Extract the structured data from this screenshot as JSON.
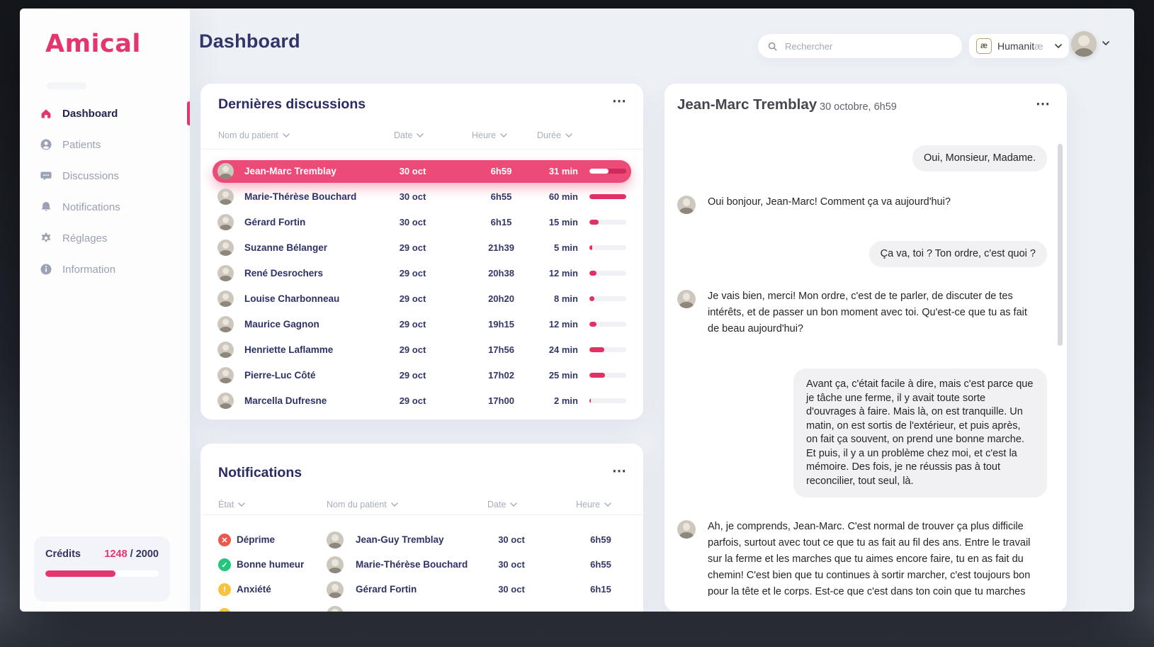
{
  "app": {
    "logo": "Amical",
    "page_title": "Dashboard"
  },
  "topbar": {
    "search": {
      "placeholder": "Rechercher"
    },
    "lang": {
      "box_glyph": "æ",
      "label": "Humanit",
      "suffix": "æ"
    }
  },
  "icons": {
    "menu_glyph": "⋯"
  },
  "sidebar": {
    "items": [
      {
        "label": "Dashboard",
        "icon": "home-icon",
        "active": true
      },
      {
        "label": "Patients",
        "icon": "person-icon",
        "active": false
      },
      {
        "label": "Discussions",
        "icon": "chat-bubble-icon",
        "active": false
      },
      {
        "label": "Notifications",
        "icon": "bell-icon",
        "active": false
      },
      {
        "label": "Réglages",
        "icon": "gear-icon",
        "active": false
      },
      {
        "label": "Information",
        "icon": "info-icon",
        "active": false
      }
    ],
    "credits": {
      "label": "Crédits",
      "used": "1248",
      "separator": " / ",
      "total": "2000",
      "percent": 62
    }
  },
  "discussions": {
    "title": "Dernières discussions",
    "columns": [
      "Nom du patient",
      "Date",
      "Heure",
      "Durée"
    ],
    "rows": [
      {
        "name": "Jean-Marc Tremblay",
        "date": "30 oct",
        "time": "6h59",
        "duration": "31 min",
        "percent": 52,
        "selected": true
      },
      {
        "name": "Marie-Thérèse Bouchard",
        "date": "30 oct",
        "time": "6h55",
        "duration": "60 min",
        "percent": 100,
        "selected": false
      },
      {
        "name": "Gérard Fortin",
        "date": "30 oct",
        "time": "6h15",
        "duration": "15 min",
        "percent": 25,
        "selected": false
      },
      {
        "name": "Suzanne Bélanger",
        "date": "29 oct",
        "time": "21h39",
        "duration": "5 min",
        "percent": 8,
        "selected": false
      },
      {
        "name": "René Desrochers",
        "date": "29 oct",
        "time": "20h38",
        "duration": "12 min",
        "percent": 20,
        "selected": false
      },
      {
        "name": "Louise Charbonneau",
        "date": "29 oct",
        "time": "20h20",
        "duration": "8 min",
        "percent": 13,
        "selected": false
      },
      {
        "name": "Maurice Gagnon",
        "date": "29 oct",
        "time": "19h15",
        "duration": "12 min",
        "percent": 20,
        "selected": false
      },
      {
        "name": "Henriette Laflamme",
        "date": "29 oct",
        "time": "17h56",
        "duration": "24 min",
        "percent": 40,
        "selected": false
      },
      {
        "name": "Pierre-Luc Côté",
        "date": "29 oct",
        "time": "17h02",
        "duration": "25 min",
        "percent": 42,
        "selected": false
      },
      {
        "name": "Marcella Dufresne",
        "date": "29 oct",
        "time": "17h00",
        "duration": "2 min",
        "percent": 4,
        "selected": false
      }
    ]
  },
  "notifications": {
    "title": "Notifications",
    "columns": [
      "État",
      "Nom du patient",
      "Date",
      "Heure"
    ],
    "status_glyphs": {
      "error": "✕",
      "ok": "✓",
      "warning": "!"
    },
    "rows": [
      {
        "state": "Déprime",
        "type": "error",
        "name": "Jean-Guy Tremblay",
        "date": "30 oct",
        "time": "6h59",
        "partial": false
      },
      {
        "state": "Bonne humeur",
        "type": "ok",
        "name": "Marie-Thérèse Bouchard",
        "date": "30 oct",
        "time": "6h55",
        "partial": false
      },
      {
        "state": "Anxiété",
        "type": "warning",
        "name": "Gérard Fortin",
        "date": "30 oct",
        "time": "6h15",
        "partial": false
      },
      {
        "state": "",
        "type": "warning",
        "name": "",
        "date": "",
        "time": "",
        "partial": true
      }
    ]
  },
  "chat": {
    "name": "Jean-Marc Tremblay",
    "date": "30 octobre, 6h59",
    "messages": [
      {
        "side": "right",
        "wide": false,
        "text": "Oui, Monsieur, Madame."
      },
      {
        "side": "left",
        "wide": false,
        "text": "Oui bonjour, Jean-Marc! Comment ça va aujourd'hui?"
      },
      {
        "side": "right",
        "wide": false,
        "text": "Ça va, toi ? Ton ordre, c'est quoi ?"
      },
      {
        "side": "left",
        "wide": false,
        "text": "Je vais bien, merci! Mon ordre, c'est de te parler, de discuter de tes intérêts, et de passer un bon moment avec toi. Qu'est-ce que tu as fait de beau aujourd'hui?"
      },
      {
        "side": "right",
        "wide": true,
        "text": "Avant ça, c'était facile à dire, mais c'est parce que je tâche une ferme, il y avait toute sorte d'ouvrages à faire. Mais là, on est tranquille. Un matin, on est sortis de l'extérieur, et puis après, on fait ça souvent, on prend une bonne marche. Et puis, il y a un problème chez moi, et c'est la mémoire. Des fois, je ne réussis pas à tout reconcilier, tout seul, là."
      },
      {
        "side": "left",
        "wide": false,
        "text": "Ah, je comprends, Jean-Marc. C'est normal de trouver ça plus difficile parfois, surtout avec tout ce que tu as fait au fil des ans. Entre le travail sur la ferme et les marches que tu aimes encore faire, tu en as fait du chemin! C'est bien que tu continues à sortir marcher, c'est toujours bon pour la tête et le corps. Est-ce que c'est dans ton coin que tu marches souvent, ou tu aimes changer d'endroit?"
      }
    ]
  },
  "colors": {
    "accent": "#E5356D",
    "selected_row": "#EC4B78",
    "bar_fill": "#E23067",
    "status_error": "#E95A4D",
    "status_ok": "#24C57E",
    "status_warning": "#F6C443",
    "heading_navy": "#32356A",
    "bubble_gray": "#F1F1F4"
  }
}
